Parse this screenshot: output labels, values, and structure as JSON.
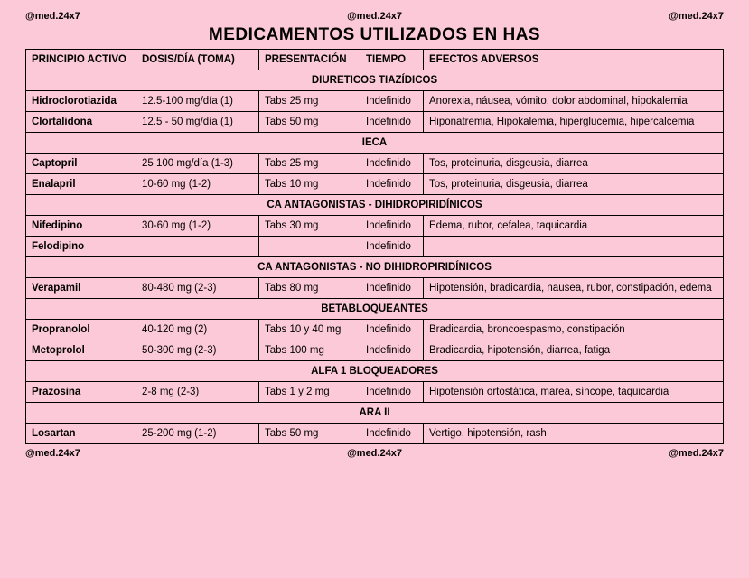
{
  "watermark": "@med.24x7",
  "title": "MEDICAMENTOS UTILIZADOS EN HAS",
  "background_color": "#fbc9d7",
  "border_color": "#000000",
  "columns": [
    "PRINCIPIO ACTIVO",
    "DOSIS/DÍA (TOMA)",
    "PRESENTACIÓN",
    "TIEMPO",
    "EFECTOS ADVERSOS"
  ],
  "sections": [
    {
      "name": "DIURETICOS TIAZÍDICOS",
      "rows": [
        {
          "principio": "Hidroclorotiazida",
          "dosis": "12.5-100 mg/día (1)",
          "presentacion": "Tabs 25 mg",
          "tiempo": "Indefinido",
          "efectos": "Anorexia, náusea, vómito, dolor abdominal, hipokalemia"
        },
        {
          "principio": "Clortalidona",
          "dosis": "12.5 - 50 mg/día (1)",
          "presentacion": "Tabs 50 mg",
          "tiempo": "Indefinido",
          "efectos": "Hiponatremia, Hipokalemia, hiperglucemia, hipercalcemia"
        }
      ]
    },
    {
      "name": "IECA",
      "rows": [
        {
          "principio": "Captopril",
          "dosis": "25 100 mg/día (1-3)",
          "presentacion": "Tabs 25 mg",
          "tiempo": "Indefinido",
          "efectos": "Tos, proteinuria, disgeusia, diarrea"
        },
        {
          "principio": "Enalapril",
          "dosis": "10-60 mg (1-2)",
          "presentacion": "Tabs 10 mg",
          "tiempo": "Indefinido",
          "efectos": "Tos, proteinuria, disgeusia, diarrea"
        }
      ]
    },
    {
      "name": "CA ANTAGONISTAS - DIHIDROPIRIDÍNICOS",
      "rows": [
        {
          "principio": "Nifedipino",
          "dosis": "30-60 mg (1-2)",
          "presentacion": "Tabs 30 mg",
          "tiempo": "Indefinido",
          "efectos": "Edema, rubor, cefalea, taquicardia"
        },
        {
          "principio": "Felodipino",
          "dosis": "",
          "presentacion": "",
          "tiempo": "Indefinido",
          "efectos": ""
        }
      ]
    },
    {
      "name": "CA ANTAGONISTAS - NO DIHIDROPIRIDÍNICOS",
      "rows": [
        {
          "principio": "Verapamil",
          "dosis": "80-480 mg (2-3)",
          "presentacion": "Tabs 80 mg",
          "tiempo": "Indefinido",
          "efectos": "Hipotensión, bradicardia, nausea, rubor, constipación, edema"
        }
      ]
    },
    {
      "name": "BETABLOQUEANTES",
      "rows": [
        {
          "principio": "Propranolol",
          "dosis": "40-120 mg (2)",
          "presentacion": "Tabs 10 y 40 mg",
          "tiempo": "Indefinido",
          "efectos": "Bradicardia, broncoespasmo, constipación"
        },
        {
          "principio": "Metoprolol",
          "dosis": "50-300 mg (2-3)",
          "presentacion": "Tabs 100 mg",
          "tiempo": "Indefinido",
          "efectos": "Bradicardia, hipotensión, diarrea, fatiga"
        }
      ]
    },
    {
      "name": "ALFA 1 BLOQUEADORES",
      "rows": [
        {
          "principio": "Prazosina",
          "dosis": "2-8 mg (2-3)",
          "presentacion": "Tabs 1 y 2 mg",
          "tiempo": "Indefinido",
          "efectos": "Hipotensión ortostática, marea, síncope, taquicardia"
        }
      ]
    },
    {
      "name": "ARA II",
      "rows": [
        {
          "principio": "Losartan",
          "dosis": "25-200 mg (1-2)",
          "presentacion": "Tabs 50 mg",
          "tiempo": "Indefinido",
          "efectos": "Vertigo, hipotensión, rash"
        }
      ]
    }
  ]
}
